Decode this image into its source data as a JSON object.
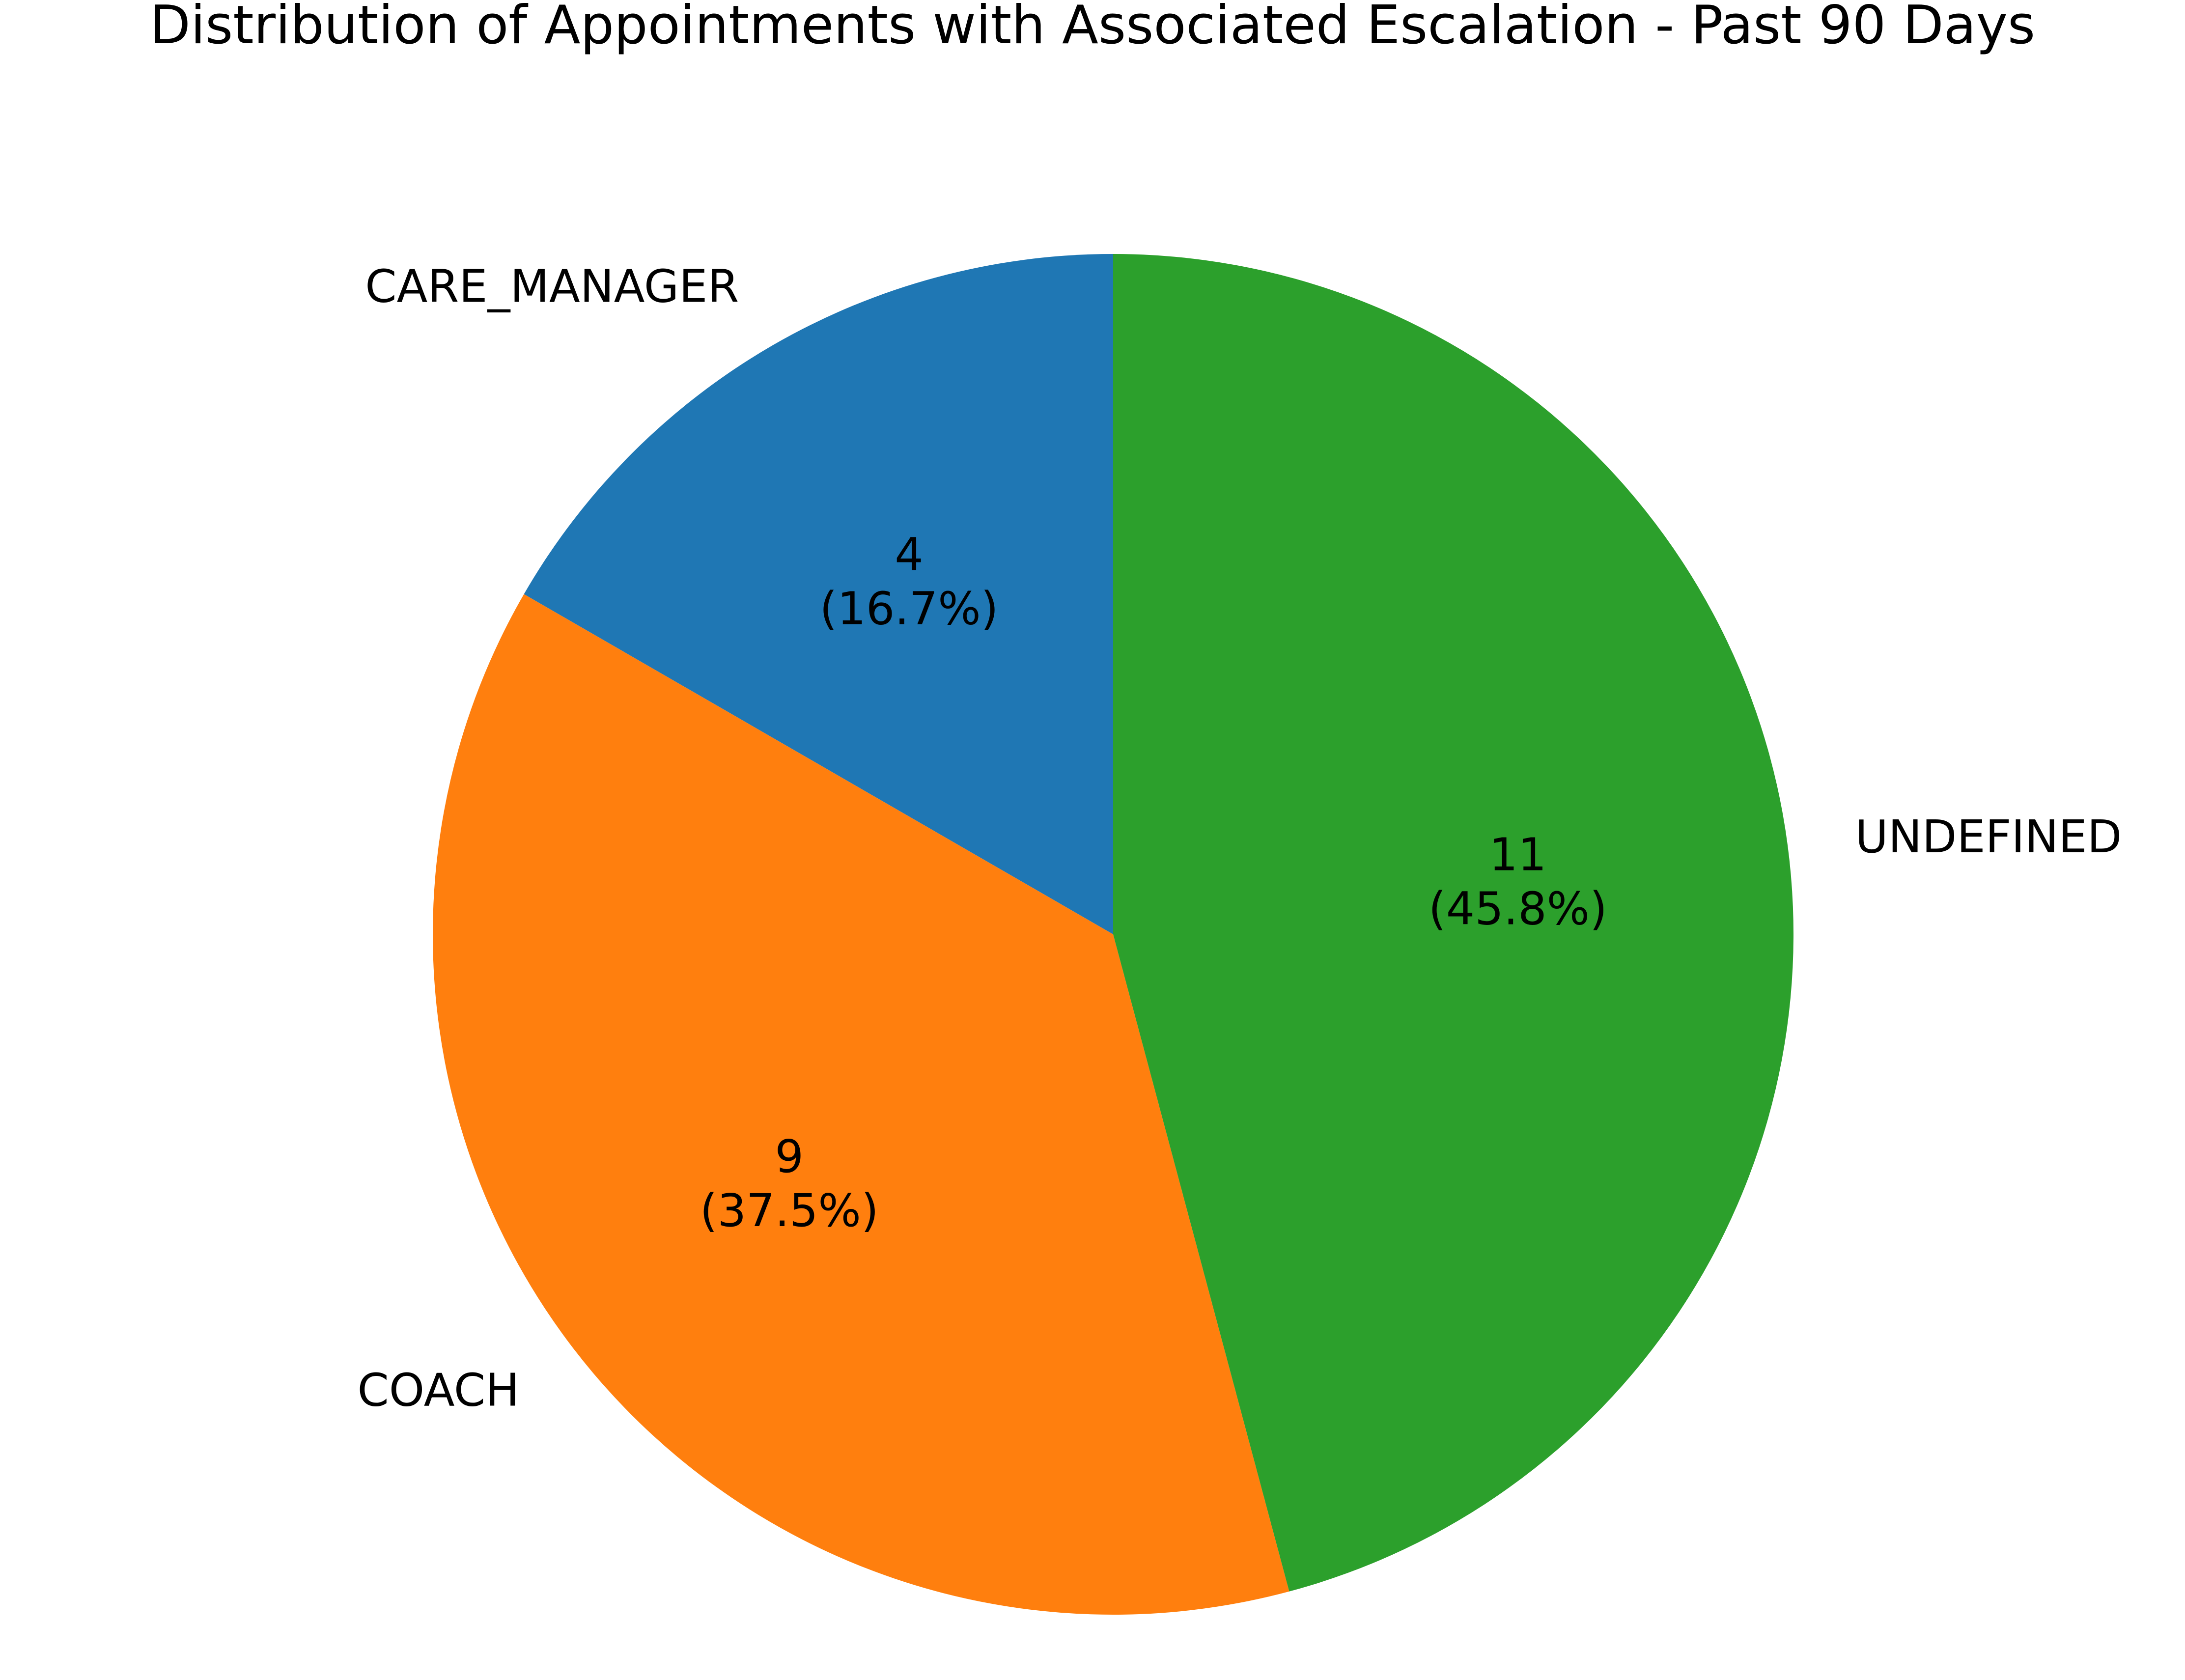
{
  "chart_data": {
    "type": "pie",
    "title": "Distribution of Appointments with Associated Escalation - Past 90 Days",
    "slices": [
      {
        "label": "CARE_MANAGER",
        "value": 4,
        "percent_label": "(16.7%)",
        "color": "#1f77b4"
      },
      {
        "label": "COACH",
        "value": 9,
        "percent_label": "(37.5%)",
        "color": "#ff7f0e"
      },
      {
        "label": "UNDEFINED",
        "value": 11,
        "percent_label": "(45.8%)",
        "color": "#2ca02c"
      }
    ],
    "start_angle_deg": 90,
    "direction": "counterclockwise",
    "legend": "none"
  }
}
